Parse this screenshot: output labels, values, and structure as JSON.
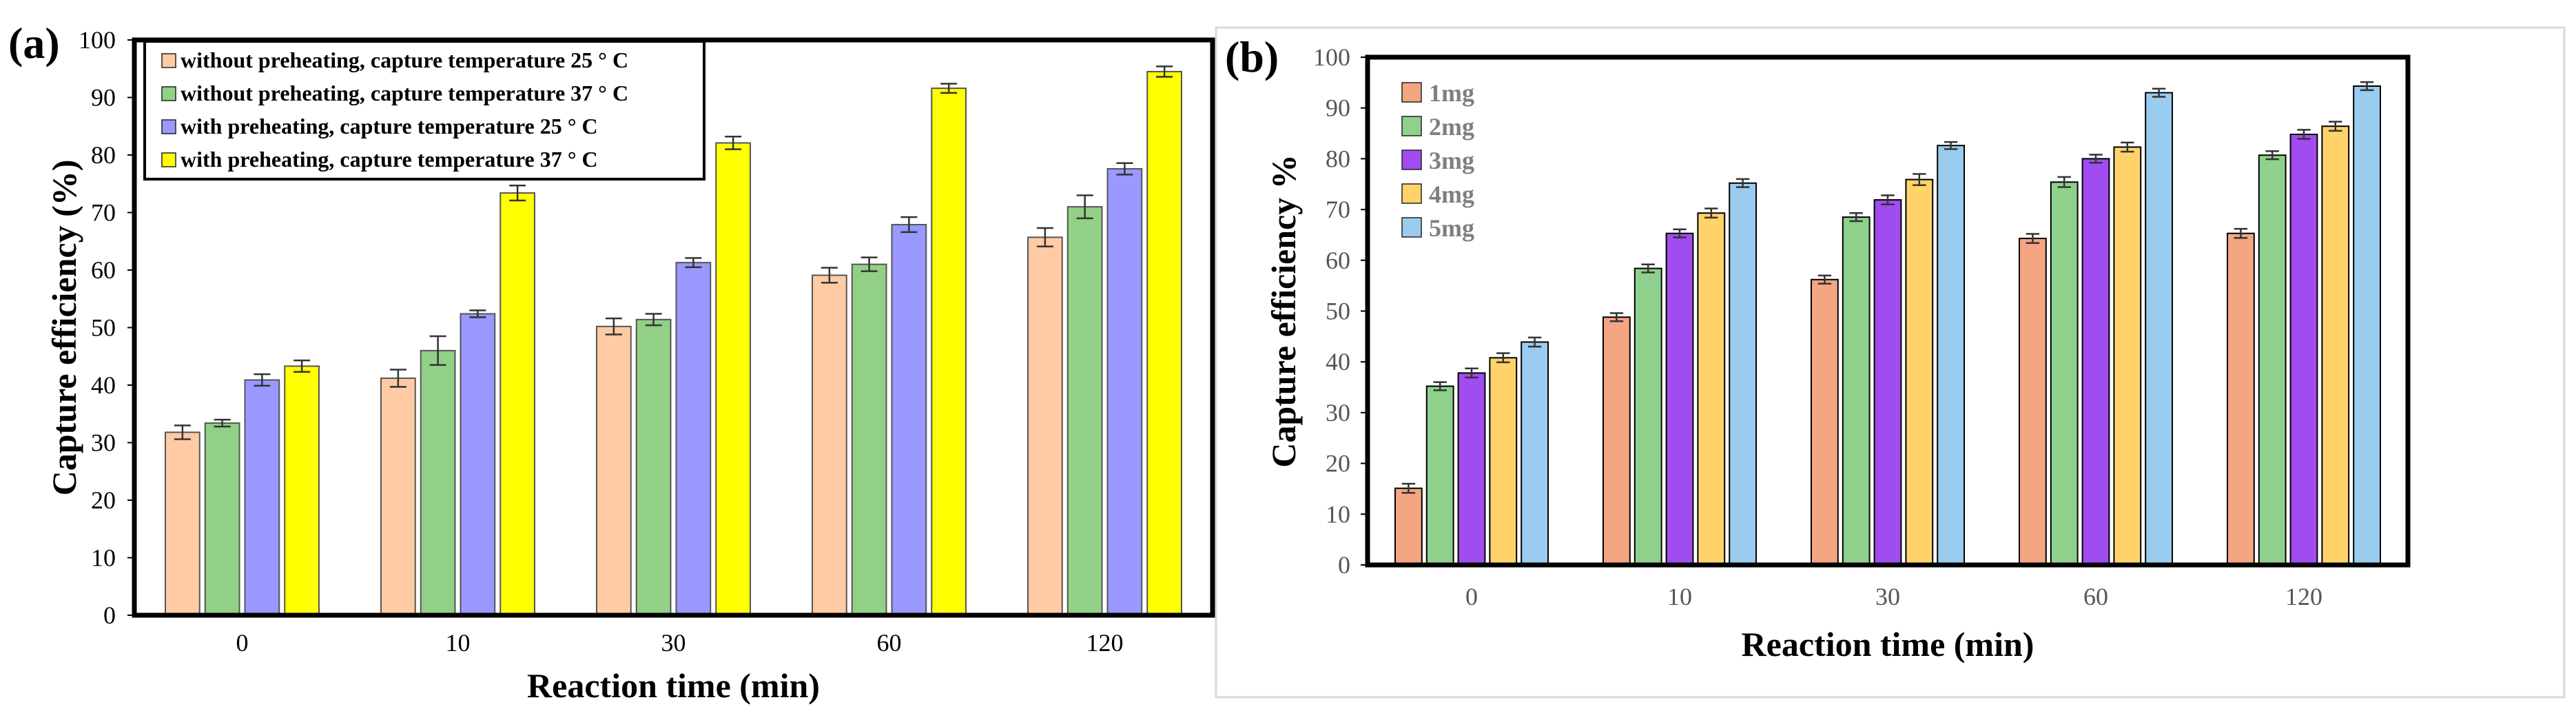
{
  "panels": {
    "a": {
      "letter": "(a)"
    },
    "b": {
      "letter": "(b)"
    }
  },
  "chart_data": [
    {
      "type": "bar",
      "panel": "(a)",
      "xlabel": "Reaction time (min)",
      "ylabel": "Capture efficiency (%)",
      "ylim": [
        0,
        100
      ],
      "yticks": [
        "0",
        "10",
        "20",
        "30",
        "40",
        "50",
        "60",
        "70",
        "80",
        "90",
        "100"
      ],
      "categories": [
        "0",
        "10",
        "30",
        "60",
        "120"
      ],
      "legend_position": "top-left",
      "series": [
        {
          "name": "without preheating, capture temperature 25 ° C",
          "color": "#FFCBA4",
          "values": [
            31.8,
            41.2,
            50.2,
            59.1,
            65.7
          ],
          "errors": [
            1.2,
            1.5,
            1.4,
            1.3,
            1.6
          ]
        },
        {
          "name": "without preheating, capture temperature 37 ° C",
          "color": "#92D086",
          "values": [
            33.4,
            46.0,
            51.4,
            61.0,
            71.0
          ],
          "errors": [
            0.6,
            2.5,
            1.0,
            1.2,
            2.0
          ]
        },
        {
          "name": "with preheating, capture temperature 25 ° C",
          "color": "#9999FF",
          "values": [
            40.9,
            52.4,
            61.3,
            67.9,
            77.6
          ],
          "errors": [
            1.0,
            0.6,
            0.8,
            1.3,
            1.0
          ]
        },
        {
          "name": "with preheating, capture temperature 37 ° C",
          "color": "#FFFF00",
          "values": [
            43.3,
            73.4,
            82.1,
            91.6,
            94.5
          ],
          "errors": [
            1.0,
            1.3,
            1.1,
            0.8,
            0.9
          ]
        }
      ]
    },
    {
      "type": "bar",
      "panel": "(b)",
      "xlabel": "Reaction time (min)",
      "ylabel": "Capture efficiency %",
      "ylim": [
        0,
        100
      ],
      "yticks": [
        "0",
        "10",
        "20",
        "30",
        "40",
        "50",
        "60",
        "70",
        "80",
        "90",
        "100"
      ],
      "categories": [
        "0",
        "10",
        "30",
        "60",
        "120"
      ],
      "legend_position": "top-left",
      "series": [
        {
          "name": "1mg",
          "color": "#F4A582",
          "values": [
            15.1,
            48.8,
            56.2,
            64.3,
            65.3
          ],
          "errors": [
            0.9,
            0.8,
            0.8,
            0.9,
            0.9
          ]
        },
        {
          "name": "2mg",
          "color": "#8FD18C",
          "values": [
            35.2,
            58.4,
            68.5,
            75.4,
            80.7
          ],
          "errors": [
            0.8,
            0.8,
            0.8,
            1.0,
            0.8
          ]
        },
        {
          "name": "3mg",
          "color": "#A04CF0",
          "values": [
            37.8,
            65.3,
            71.9,
            80.0,
            84.8
          ],
          "errors": [
            0.9,
            0.8,
            0.9,
            0.8,
            0.9
          ]
        },
        {
          "name": "4mg",
          "color": "#FFD36A",
          "values": [
            40.8,
            69.3,
            75.9,
            82.3,
            86.4
          ],
          "errors": [
            0.9,
            0.9,
            1.1,
            0.9,
            0.9
          ]
        },
        {
          "name": "5mg",
          "color": "#99CCEE",
          "values": [
            43.9,
            75.2,
            82.6,
            93.0,
            94.3
          ],
          "errors": [
            0.9,
            0.8,
            0.7,
            0.8,
            0.8
          ]
        }
      ]
    }
  ]
}
